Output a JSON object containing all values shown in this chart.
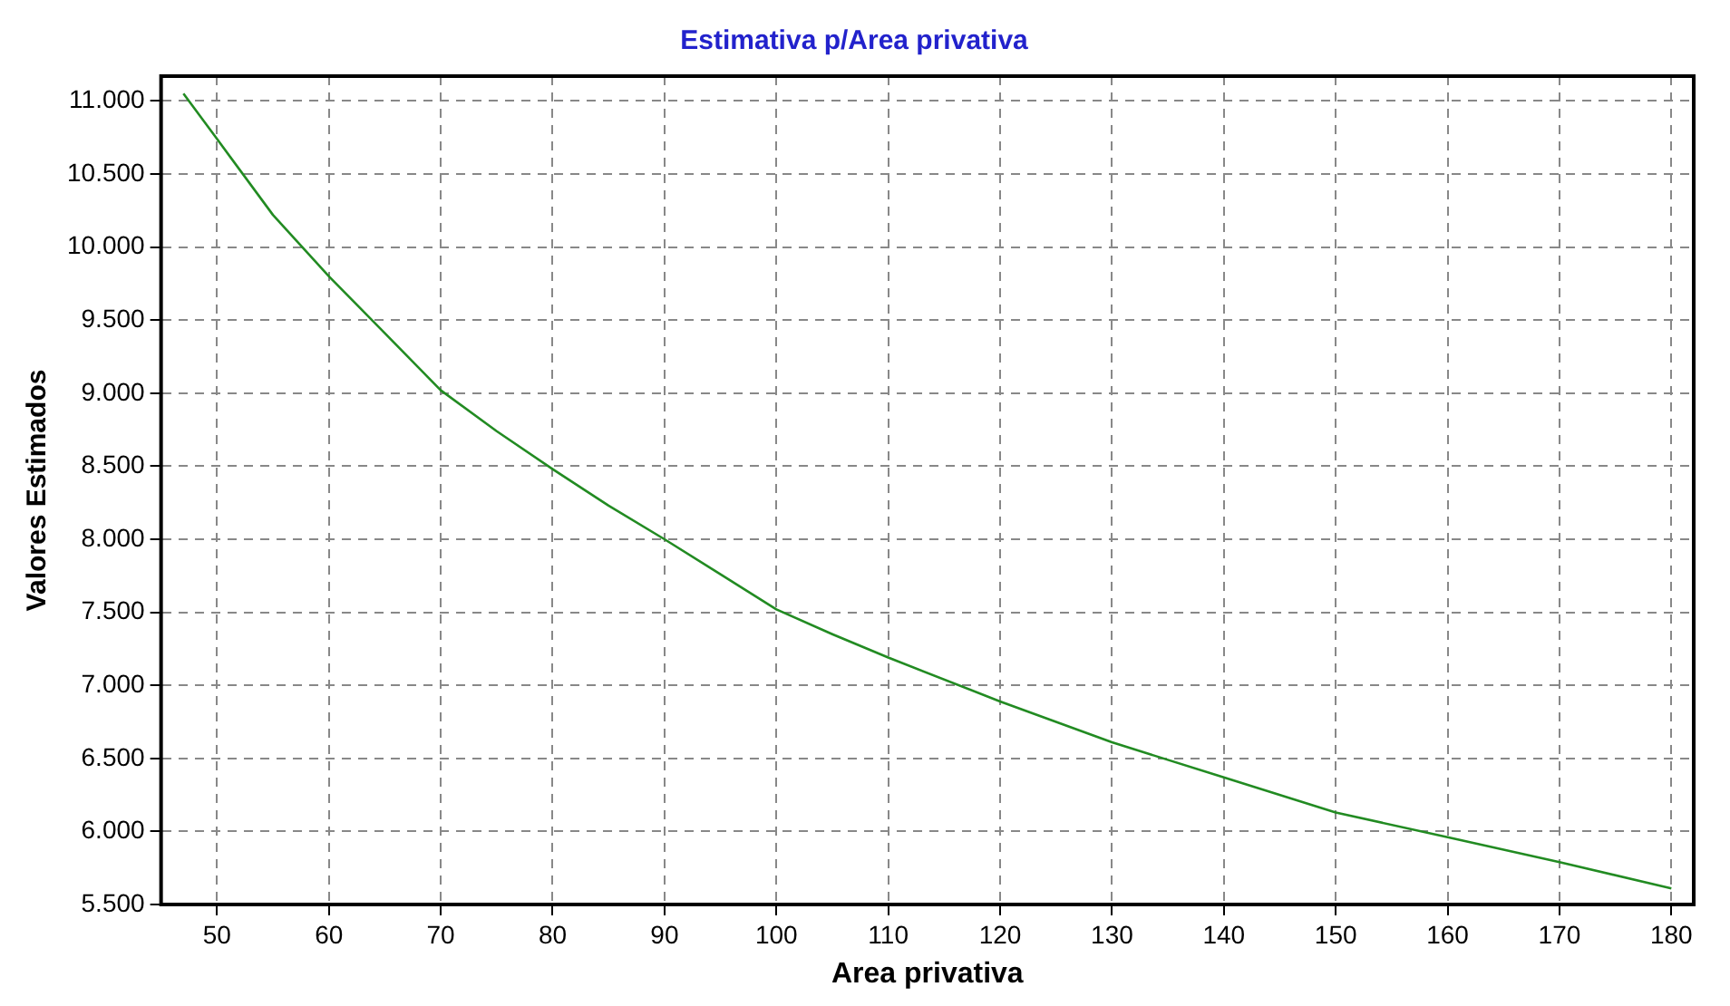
{
  "chart_data": {
    "type": "line",
    "title": "Estimativa p/Area privativa",
    "xlabel": "Area privativa",
    "ylabel": "Valores Estimados",
    "x": [
      47,
      50,
      55,
      60,
      65,
      70,
      75,
      80,
      85,
      90,
      95,
      100,
      105,
      110,
      120,
      130,
      140,
      150,
      160,
      170,
      180
    ],
    "series": [
      {
        "color": "#228b22",
        "values": [
          11050,
          10740,
          10220,
          9800,
          9410,
          9020,
          8740,
          8480,
          8230,
          8000,
          7760,
          7520,
          7350,
          7190,
          6890,
          6610,
          6370,
          6130,
          5960,
          5790,
          5610
        ]
      }
    ],
    "xlim": [
      45,
      182
    ],
    "xticks": [
      50,
      60,
      70,
      80,
      90,
      100,
      110,
      120,
      130,
      140,
      150,
      160,
      170,
      180
    ],
    "ylim": [
      5500,
      11170
    ],
    "yticks": [
      {
        "value": 5500,
        "label": "5.500"
      },
      {
        "value": 6000,
        "label": "6.000"
      },
      {
        "value": 6500,
        "label": "6.500"
      },
      {
        "value": 7000,
        "label": "7.000"
      },
      {
        "value": 7500,
        "label": "7.500"
      },
      {
        "value": 8000,
        "label": "8.000"
      },
      {
        "value": 8500,
        "label": "8.500"
      },
      {
        "value": 9000,
        "label": "9.000"
      },
      {
        "value": 9500,
        "label": "9.500"
      },
      {
        "value": 10000,
        "label": "10.000"
      },
      {
        "value": 10500,
        "label": "10.500"
      },
      {
        "value": 11000,
        "label": "11.000"
      }
    ],
    "grid": true,
    "legend": false,
    "marker": "none",
    "line_style": "solid"
  }
}
